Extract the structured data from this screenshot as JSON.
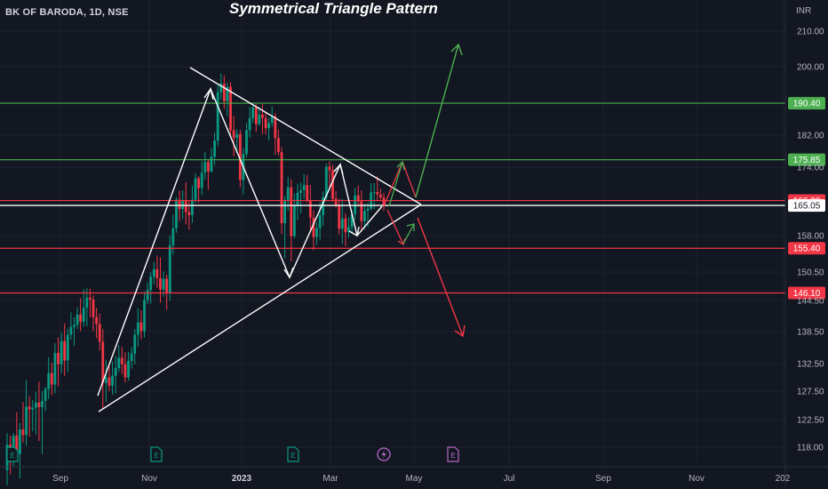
{
  "header": {
    "symbol": "BK OF BARODA, 1D, NSE",
    "title": "Symmetrical Triangle Pattern",
    "currency": "INR"
  },
  "chart_data": {
    "type": "candlestick",
    "yaxis": {
      "ticks": [
        "210.00",
        "200.00",
        "182.00",
        "174.00",
        "158.00",
        "150.50",
        "144.50",
        "138.50",
        "132.50",
        "127.50",
        "122.50",
        "118.00"
      ]
    },
    "xaxis": {
      "ticks": [
        {
          "label": "Sep",
          "bold": false
        },
        {
          "label": "Nov",
          "bold": false
        },
        {
          "label": "2023",
          "bold": true
        },
        {
          "label": "Mar",
          "bold": false
        },
        {
          "label": "May",
          "bold": false
        },
        {
          "label": "Jul",
          "bold": false
        },
        {
          "label": "Sep",
          "bold": false
        },
        {
          "label": "Nov",
          "bold": false
        },
        {
          "label": "202",
          "bold": false
        }
      ]
    },
    "horizontal_levels": [
      {
        "value": "190.40",
        "color": "#4caf50"
      },
      {
        "value": "175.85",
        "color": "#4caf50"
      },
      {
        "value": "166.20",
        "color": "#f23645"
      },
      {
        "value": "165.05",
        "color": "#ffffff"
      },
      {
        "value": "155.40",
        "color": "#f23645"
      },
      {
        "value": "146.10",
        "color": "#f23645"
      }
    ],
    "event_markers": [
      "E",
      "E",
      "E",
      "E",
      "E"
    ],
    "candles": [
      [
        114.3,
        120.3,
        111.8,
        118.4
      ],
      [
        118.4,
        119.9,
        113.6,
        116.4
      ],
      [
        116.4,
        120.3,
        114.9,
        119.9
      ],
      [
        119.9,
        123.8,
        117.1,
        116.9
      ],
      [
        116.9,
        122.0,
        112.9,
        120.9
      ],
      [
        120.9,
        125.6,
        118.7,
        120.0
      ],
      [
        120.0,
        129.5,
        118.3,
        124.8
      ],
      [
        124.8,
        126.6,
        119.7,
        124.3
      ],
      [
        124.3,
        126.0,
        120.6,
        124.6
      ],
      [
        124.6,
        127.4,
        120.1,
        125.5
      ],
      [
        125.5,
        129.2,
        119.0,
        124.7
      ],
      [
        124.7,
        127.5,
        116.9,
        125.8
      ],
      [
        125.8,
        128.3,
        124.0,
        127.9
      ],
      [
        127.9,
        133.7,
        126.1,
        130.8
      ],
      [
        130.8,
        132.7,
        126.8,
        128.7
      ],
      [
        128.7,
        136.3,
        127.1,
        134.5
      ],
      [
        134.5,
        137.4,
        128.4,
        132.4
      ],
      [
        132.4,
        138.3,
        130.8,
        136.7
      ],
      [
        136.7,
        140.1,
        130.3,
        133.1
      ],
      [
        133.1,
        139.1,
        131.0,
        137.9
      ],
      [
        137.9,
        142.2,
        137.0,
        139.4
      ],
      [
        139.4,
        141.3,
        135.8,
        139.8
      ],
      [
        139.8,
        143.2,
        139.0,
        141.8
      ],
      [
        141.8,
        145.0,
        138.6,
        140.4
      ],
      [
        140.4,
        146.9,
        139.5,
        143.1
      ],
      [
        143.1,
        147.1,
        139.5,
        145.1
      ],
      [
        145.1,
        147.0,
        141.2,
        144.7
      ],
      [
        144.7,
        145.6,
        138.6,
        141.3
      ],
      [
        141.3,
        143.1,
        137.3,
        140.0
      ],
      [
        140.0,
        142.0,
        135.0,
        136.6
      ],
      [
        136.6,
        139.0,
        124.4,
        129.0
      ],
      [
        129.0,
        133.2,
        125.6,
        130.0
      ],
      [
        130.0,
        132.3,
        127.5,
        128.5
      ],
      [
        128.5,
        132.9,
        126.9,
        130.3
      ],
      [
        130.3,
        134.0,
        127.1,
        131.7
      ],
      [
        131.7,
        136.0,
        131.0,
        133.6
      ],
      [
        133.6,
        135.6,
        130.6,
        132.4
      ],
      [
        132.4,
        134.7,
        129.1,
        130.0
      ],
      [
        130.0,
        134.7,
        129.4,
        133.0
      ],
      [
        133.0,
        135.6,
        131.6,
        134.4
      ],
      [
        134.4,
        139.0,
        132.4,
        137.9
      ],
      [
        137.9,
        143.0,
        135.7,
        140.3
      ],
      [
        140.3,
        142.6,
        137.1,
        138.6
      ],
      [
        138.6,
        146.4,
        137.4,
        144.6
      ],
      [
        144.6,
        148.3,
        143.8,
        146.7
      ],
      [
        146.7,
        150.5,
        143.9,
        149.5
      ],
      [
        149.5,
        152.6,
        147.9,
        151.1
      ],
      [
        151.1,
        153.9,
        147.2,
        149.2
      ],
      [
        149.2,
        153.5,
        144.1,
        146.8
      ],
      [
        146.8,
        150.6,
        145.3,
        149.1
      ],
      [
        149.1,
        150.0,
        142.7,
        146.1
      ],
      [
        146.1,
        158.0,
        144.5,
        156.0
      ],
      [
        156.0,
        162.9,
        154.1,
        159.7
      ],
      [
        159.7,
        167.0,
        158.7,
        166.4
      ],
      [
        166.4,
        168.6,
        161.4,
        164.2
      ],
      [
        164.2,
        168.6,
        161.9,
        166.2
      ],
      [
        166.2,
        170.5,
        160.6,
        163.5
      ],
      [
        163.5,
        166.1,
        159.4,
        162.8
      ],
      [
        162.8,
        169.7,
        161.0,
        166.4
      ],
      [
        166.4,
        172.5,
        165.6,
        171.4
      ],
      [
        171.4,
        171.9,
        165.7,
        169.1
      ],
      [
        169.1,
        175.5,
        167.5,
        172.7
      ],
      [
        172.7,
        177.8,
        171.1,
        175.3
      ],
      [
        175.3,
        175.9,
        168.7,
        173.0
      ],
      [
        173.0,
        178.7,
        172.7,
        176.6
      ],
      [
        176.6,
        182.6,
        174.5,
        180.6
      ],
      [
        180.6,
        195.2,
        179.2,
        193.3
      ],
      [
        193.3,
        198.2,
        191.3,
        195.5
      ],
      [
        195.5,
        197.7,
        188.9,
        190.9
      ],
      [
        190.9,
        195.8,
        187.0,
        194.7
      ],
      [
        194.7,
        195.9,
        181.3,
        183.3
      ],
      [
        183.3,
        187.0,
        176.7,
        181.3
      ],
      [
        181.3,
        183.6,
        177.7,
        182.3
      ],
      [
        182.3,
        183.4,
        169.3,
        171.0
      ],
      [
        171.0,
        178.7,
        167.6,
        177.3
      ],
      [
        177.3,
        185.1,
        176.5,
        183.3
      ],
      [
        183.3,
        189.5,
        181.4,
        186.5
      ],
      [
        186.5,
        190.6,
        185.2,
        189.3
      ],
      [
        189.3,
        190.1,
        182.9,
        184.9
      ],
      [
        184.9,
        189.5,
        184.4,
        187.4
      ],
      [
        187.4,
        190.2,
        182.3,
        186.5
      ],
      [
        186.5,
        188.1,
        182.2,
        183.8
      ],
      [
        183.8,
        186.6,
        180.7,
        185.2
      ],
      [
        185.2,
        189.6,
        184.2,
        186.9
      ],
      [
        186.9,
        187.8,
        177.1,
        181.3
      ],
      [
        181.3,
        183.5,
        176.9,
        177.8
      ],
      [
        177.8,
        179.0,
        158.4,
        160.9
      ],
      [
        160.9,
        167.2,
        153.4,
        166.1
      ],
      [
        166.1,
        171.7,
        163.8,
        169.3
      ],
      [
        169.3,
        171.2,
        152.7,
        157.9
      ],
      [
        157.9,
        167.9,
        157.4,
        165.1
      ],
      [
        165.1,
        170.1,
        161.6,
        168.0
      ],
      [
        168.0,
        170.4,
        163.2,
        168.6
      ],
      [
        168.6,
        172.4,
        166.6,
        169.8
      ],
      [
        169.8,
        172.2,
        165.7,
        166.3
      ],
      [
        166.3,
        169.8,
        158.8,
        162.2
      ],
      [
        162.2,
        163.9,
        155.0,
        157.7
      ],
      [
        157.7,
        161.1,
        156.1,
        159.7
      ],
      [
        159.7,
        165.8,
        157.2,
        162.8
      ],
      [
        162.8,
        168.3,
        160.3,
        167.0
      ],
      [
        167.0,
        174.9,
        166.0,
        174.1
      ],
      [
        174.1,
        175.4,
        169.2,
        173.3
      ],
      [
        173.3,
        174.6,
        165.9,
        166.6
      ],
      [
        166.6,
        168.5,
        164.6,
        165.2
      ],
      [
        165.2,
        166.7,
        158.3,
        159.6
      ],
      [
        159.6,
        166.6,
        156.3,
        162.0
      ],
      [
        162.0,
        163.3,
        155.8,
        158.8
      ],
      [
        158.8,
        162.3,
        157.6,
        160.0
      ],
      [
        160.0,
        164.0,
        158.7,
        163.0
      ],
      [
        163.0,
        169.2,
        161.7,
        167.4
      ],
      [
        167.4,
        169.7,
        164.8,
        166.0
      ],
      [
        166.0,
        168.6,
        159.3,
        161.4
      ],
      [
        161.4,
        165.5,
        159.5,
        163.8
      ],
      [
        163.8,
        165.7,
        160.0,
        164.3
      ],
      [
        164.3,
        170.3,
        163.9,
        168.1
      ],
      [
        168.1,
        170.3,
        164.2,
        168.2
      ],
      [
        168.2,
        171.9,
        166.0,
        167.6
      ],
      [
        167.6,
        169.0,
        166.4,
        166.9
      ],
      [
        166.9,
        168.0,
        163.8,
        165.1
      ]
    ]
  }
}
